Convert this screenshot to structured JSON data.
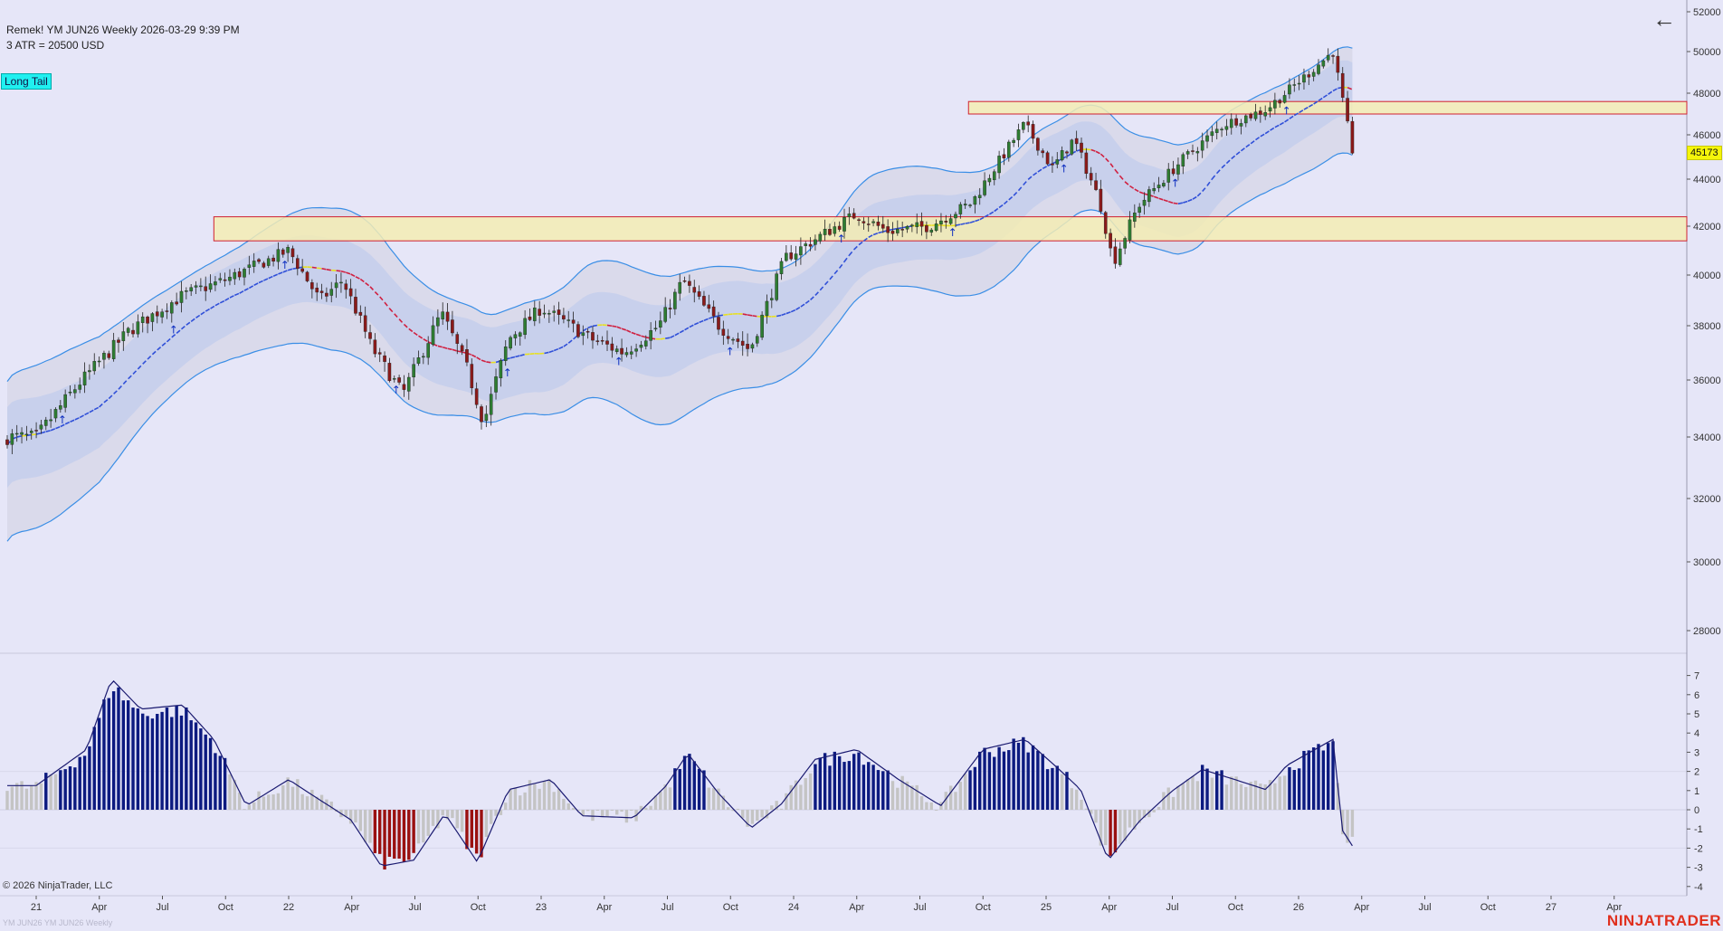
{
  "header": {
    "line1": "Remek!  YM JUN26  Weekly  2026-03-29 9:39 PM",
    "line2": "3 ATR = 20500 USD"
  },
  "badge": {
    "label": "Long Tail"
  },
  "last_price": "45173",
  "footer": {
    "copyright": "© 2026 NinjaTrader, LLC",
    "watermark": "YM JUN26 YM JUN26 Weekly",
    "brand": "NINJATRADER"
  },
  "icons": {
    "back": "arrow-left-icon"
  },
  "colors": {
    "background": "#e6e6f8",
    "bull_candle": "#2e7d32",
    "bear_candle": "#8b1a1a",
    "zone_fill": "#f3ecb4",
    "zone_border": "#d02030",
    "band_line": "#3a8ee6",
    "histogram_bull": "#0c1a80",
    "histogram_bear": "#9a1010",
    "histogram_neutral": "#c4c4c4"
  },
  "chart_data": [
    {
      "type": "candlestick",
      "instrument": "YM JUN26",
      "timeframe": "Weekly",
      "x_tick_labels": [
        "21",
        "Apr",
        "Jul",
        "Oct",
        "22",
        "Apr",
        "Jul",
        "Oct",
        "23",
        "Apr",
        "Jul",
        "Oct",
        "24",
        "Apr",
        "Jul",
        "Oct",
        "25",
        "Apr",
        "Jul",
        "Oct",
        "26",
        "Apr",
        "Jul",
        "Oct",
        "27",
        "Apr"
      ],
      "y_tick_labels": [
        "52000",
        "50000",
        "48000",
        "46000",
        "44000",
        "42000",
        "40000",
        "38000",
        "36000",
        "34000",
        "32000",
        "30000",
        "28000"
      ],
      "ylim": [
        27200,
        52300
      ],
      "close_path": [
        [
          "2021-01-01",
          34000
        ],
        [
          "2021-03-01",
          35800
        ],
        [
          "2021-05-15",
          37800
        ],
        [
          "2021-08-01",
          39200
        ],
        [
          "2021-10-01",
          39800
        ],
        [
          "2022-01-01",
          41000
        ],
        [
          "2022-02-15",
          39000
        ],
        [
          "2022-03-20",
          39800
        ],
        [
          "2022-05-01",
          37200
        ],
        [
          "2022-06-15",
          35500
        ],
        [
          "2022-08-10",
          38500
        ],
        [
          "2022-09-15",
          36500
        ],
        [
          "2022-10-10",
          34500
        ],
        [
          "2022-11-15",
          37500
        ],
        [
          "2023-01-01",
          38700
        ],
        [
          "2023-03-15",
          37500
        ],
        [
          "2023-05-01",
          37000
        ],
        [
          "2023-06-20",
          38000
        ],
        [
          "2023-07-25",
          39800
        ],
        [
          "2023-09-15",
          38000
        ],
        [
          "2023-10-30",
          37100
        ],
        [
          "2023-12-20",
          40700
        ],
        [
          "2024-03-31",
          42500
        ],
        [
          "2024-05-15",
          41800
        ],
        [
          "2024-07-15",
          42000
        ],
        [
          "2024-09-15",
          43000
        ],
        [
          "2024-11-30",
          46500
        ],
        [
          "2025-01-10",
          44500
        ],
        [
          "2025-02-10",
          45800
        ],
        [
          "2025-03-20",
          43000
        ],
        [
          "2025-04-08",
          40500
        ],
        [
          "2025-05-15",
          42900
        ],
        [
          "2025-07-15",
          44800
        ],
        [
          "2025-09-15",
          46500
        ],
        [
          "2025-11-15",
          47200
        ],
        [
          "2026-01-10",
          48800
        ],
        [
          "2026-02-20",
          50000
        ],
        [
          "2026-03-20",
          45173
        ]
      ],
      "zones": [
        {
          "from": "2021-09-15",
          "to": "right-edge",
          "low": 41400,
          "high": 42400
        },
        {
          "from": "2024-09-10",
          "to": "right-edge",
          "low": 47000,
          "high": 47600
        }
      ],
      "last_price": 45173
    },
    {
      "type": "histogram",
      "y_tick_labels": [
        "7",
        "6",
        "5",
        "4",
        "3",
        "2",
        "1",
        "0",
        "-1",
        "-2",
        "-3",
        "-4"
      ],
      "ylim": [
        -4.6,
        8
      ],
      "path": [
        [
          "2021-01-01",
          1.2
        ],
        [
          "2021-03-15",
          3
        ],
        [
          "2021-04-20",
          6.5
        ],
        [
          "2021-06-01",
          5
        ],
        [
          "2021-08-01",
          5.2
        ],
        [
          "2021-09-15",
          3.5
        ],
        [
          "2021-11-01",
          0.2
        ],
        [
          "2022-01-01",
          1.5
        ],
        [
          "2022-02-01",
          0.8
        ],
        [
          "2022-04-01",
          -0.5
        ],
        [
          "2022-05-15",
          -2.8
        ],
        [
          "2022-07-01",
          -2.5
        ],
        [
          "2022-08-15",
          -0.2
        ],
        [
          "2022-10-01",
          -2.6
        ],
        [
          "2022-11-15",
          1
        ],
        [
          "2023-01-15",
          1.5
        ],
        [
          "2023-03-01",
          -0.3
        ],
        [
          "2023-05-15",
          -0.4
        ],
        [
          "2023-07-01",
          1.2
        ],
        [
          "2023-08-01",
          2.8
        ],
        [
          "2023-09-15",
          0.8
        ],
        [
          "2023-11-01",
          -0.9
        ],
        [
          "2023-12-15",
          0.3
        ],
        [
          "2024-02-01",
          2.5
        ],
        [
          "2024-04-01",
          3
        ],
        [
          "2024-06-01",
          1.5
        ],
        [
          "2024-08-01",
          0.2
        ],
        [
          "2024-10-01",
          3
        ],
        [
          "2024-12-01",
          3.5
        ],
        [
          "2025-01-20",
          2
        ],
        [
          "2025-02-20",
          1
        ],
        [
          "2025-04-01",
          -2.5
        ],
        [
          "2025-05-15",
          -0.6
        ],
        [
          "2025-07-01",
          0.9
        ],
        [
          "2025-08-15",
          2
        ],
        [
          "2025-10-01",
          1.5
        ],
        [
          "2025-11-15",
          1
        ],
        [
          "2025-12-15",
          2.2
        ],
        [
          "2026-02-20",
          3.5
        ],
        [
          "2026-03-05",
          -1
        ],
        [
          "2026-03-20",
          -1.8
        ]
      ]
    }
  ]
}
